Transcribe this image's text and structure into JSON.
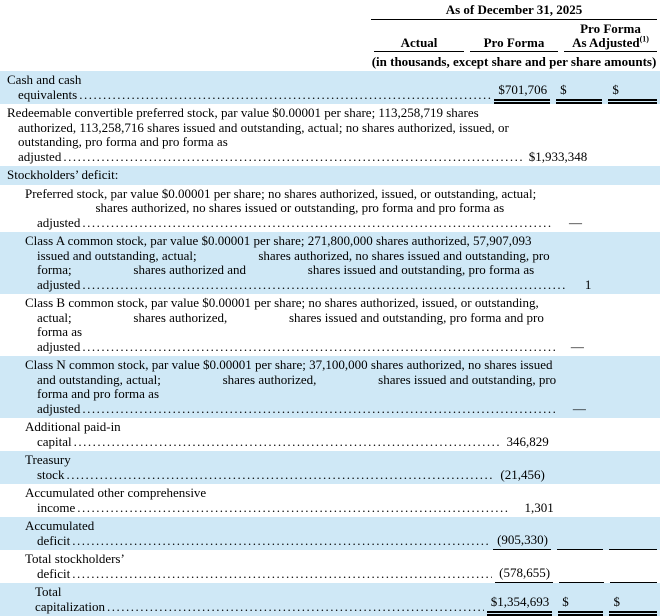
{
  "header": {
    "date_title": "As of December 31, 2025",
    "columns": [
      {
        "label": "Actual"
      },
      {
        "label": "Pro Forma"
      },
      {
        "label_line1": "Pro Forma",
        "label_line2": "As Adjusted",
        "footnote_marker": "(1)"
      }
    ],
    "units_note": "(in thousands, except share and per share amounts)"
  },
  "colors": {
    "highlight": "#cfe8f6",
    "rule": "#000000"
  },
  "table": {
    "rows": [
      {
        "id": "cash-and-cash-equivalents",
        "label": "Cash and cash equivalents",
        "indent": 0,
        "leader": true,
        "highlight": true,
        "rule": "double",
        "cells": [
          {
            "d": "$",
            "v": "701,706"
          },
          {
            "d": "$",
            "v": ""
          },
          {
            "d": "$",
            "v": ""
          }
        ]
      },
      {
        "id": "redeemable-convertible-preferred-stock",
        "label": "Redeemable convertible preferred stock, par value $0.00001 per share; 113,258,719 shares authorized, 113,258,716 shares issued and outstanding, actual; no shares authorized, issued, or outstanding, pro forma and pro forma as adjusted",
        "indent": 0,
        "leader": true,
        "highlight": false,
        "rule": "none",
        "cells": [
          {
            "d": "$",
            "v": "1,933,348"
          },
          {},
          {}
        ]
      },
      {
        "id": "stockholders-deficit-heading",
        "label": "Stockholders’ deficit:",
        "indent": 0,
        "leader": false,
        "highlight": true,
        "rule": "none",
        "cells": [
          {},
          {},
          {}
        ]
      },
      {
        "id": "preferred-stock",
        "label": "Preferred stock, par value $0.00001 per share; no shares authorized, issued, or outstanding, actual;                   shares authorized, no shares issued or outstanding, pro forma and pro forma as adjusted",
        "indent": 1,
        "leader": true,
        "highlight": false,
        "rule": "none",
        "cells": [
          {
            "v": "—"
          },
          {},
          {}
        ]
      },
      {
        "id": "class-a-common-stock",
        "label": "Class A common stock, par value $0.00001 per share; 271,800,000 shares authorized, 57,907,093 issued and outstanding, actual;                   shares authorized, no shares issued and outstanding, pro forma;                   shares authorized and                   shares issued and outstanding, pro forma as adjusted",
        "indent": 1,
        "leader": true,
        "highlight": true,
        "rule": "none",
        "cells": [
          {
            "v": "1"
          },
          {},
          {}
        ]
      },
      {
        "id": "class-b-common-stock",
        "label": "Class B common stock, par value $0.00001 per share; no shares authorized, issued, or outstanding, actual;                   shares authorized,                   shares issued and outstanding, pro forma and pro forma as adjusted",
        "indent": 1,
        "leader": true,
        "highlight": false,
        "rule": "none",
        "cells": [
          {
            "v": "—"
          },
          {},
          {}
        ]
      },
      {
        "id": "class-n-common-stock",
        "label": "Class N common stock, par value $0.00001 per share; 37,100,000 shares authorized, no shares issued and outstanding, actual;                   shares authorized,                   shares issued and outstanding, pro forma and pro forma as adjusted",
        "indent": 1,
        "leader": true,
        "highlight": true,
        "rule": "none",
        "cells": [
          {
            "v": "—"
          },
          {},
          {}
        ]
      },
      {
        "id": "additional-paid-in-capital",
        "label": "Additional paid-in capital",
        "indent": 1,
        "leader": true,
        "highlight": false,
        "rule": "none",
        "cells": [
          {
            "v": "346,829"
          },
          {},
          {}
        ]
      },
      {
        "id": "treasury-stock",
        "label": "Treasury stock",
        "indent": 1,
        "leader": true,
        "highlight": true,
        "rule": "none",
        "cells": [
          {
            "v": "(21,456)"
          },
          {},
          {}
        ]
      },
      {
        "id": "accumulated-other-comprehensive-income",
        "label": "Accumulated other comprehensive income",
        "indent": 1,
        "leader": true,
        "highlight": false,
        "rule": "none",
        "cells": [
          {
            "v": "1,301"
          },
          {},
          {}
        ]
      },
      {
        "id": "accumulated-deficit",
        "label": "Accumulated deficit",
        "indent": 1,
        "leader": true,
        "highlight": true,
        "rule": "single",
        "cells": [
          {
            "v": "(905,330)"
          },
          {},
          {}
        ]
      },
      {
        "id": "total-stockholders-deficit",
        "label": "Total stockholders’ deficit",
        "indent": 1,
        "leader": true,
        "highlight": false,
        "rule": "single",
        "cells": [
          {
            "v": "(578,655)"
          },
          {},
          {}
        ]
      },
      {
        "id": "total-capitalization",
        "label": "Total capitalization",
        "indent": 2,
        "leader": true,
        "highlight": true,
        "rule": "double",
        "cells": [
          {
            "d": "$",
            "v": "1,354,693"
          },
          {
            "d": "$",
            "v": ""
          },
          {
            "d": "$",
            "v": ""
          }
        ]
      }
    ]
  }
}
